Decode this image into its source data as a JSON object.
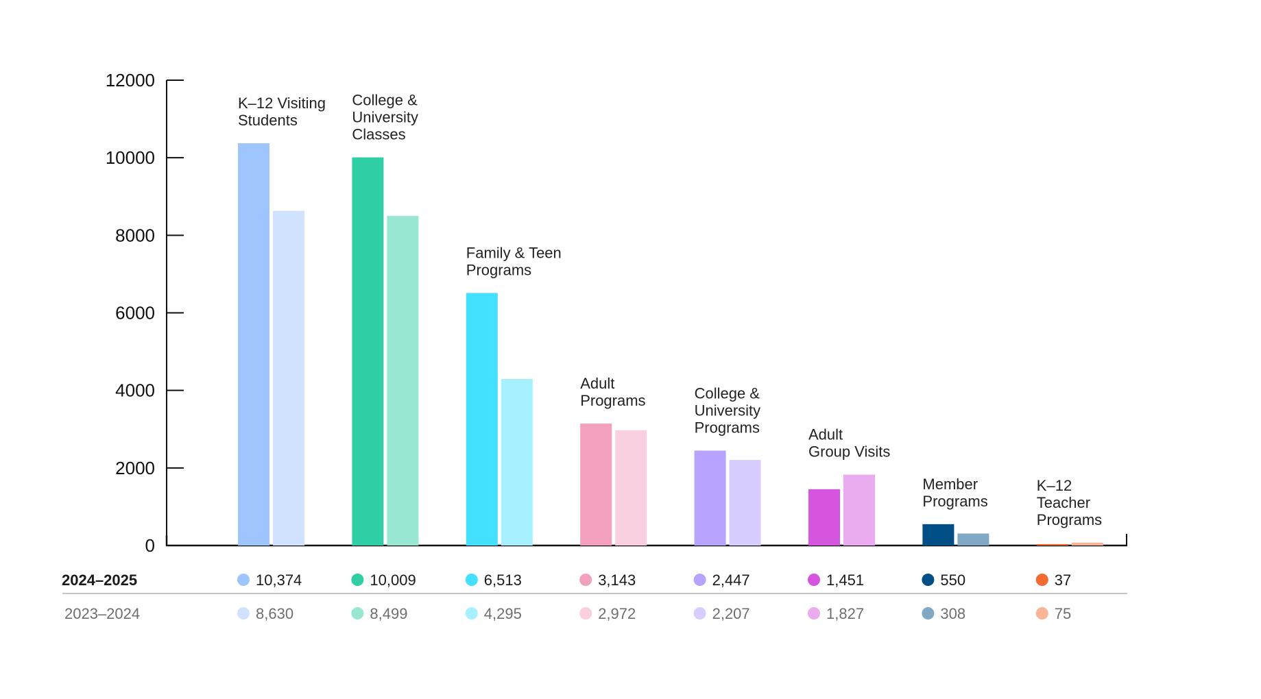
{
  "chart_data": {
    "type": "bar",
    "title": "",
    "xlabel": "",
    "ylabel": "",
    "ylim": [
      0,
      12000
    ],
    "yticks": [
      0,
      2000,
      4000,
      6000,
      8000,
      10000,
      12000
    ],
    "ytick_labels": [
      "0",
      "2000",
      "4000",
      "6000",
      "8000",
      "10000",
      "12000"
    ],
    "grid": false,
    "legend": "table below chart",
    "categories": [
      "K–12 Visiting Students",
      "College & University Classes",
      "Family & Teen Programs",
      "Adult Programs",
      "College & University Programs",
      "Adult Group Visits",
      "Member Programs",
      "K–12 Teacher Programs"
    ],
    "category_label_lines": [
      [
        "K–12 Visiting",
        "Students"
      ],
      [
        "College &",
        "University",
        "Classes"
      ],
      [
        "Family & Teen",
        "Programs"
      ],
      [
        "Adult",
        "Programs"
      ],
      [
        "College &",
        "University",
        "Programs"
      ],
      [
        "Adult",
        "Group Visits"
      ],
      [
        "Member",
        "Programs"
      ],
      [
        "K–12",
        "Teacher",
        "Programs"
      ]
    ],
    "series": [
      {
        "name": "2024–2025",
        "values": [
          10374,
          10009,
          6513,
          3143,
          2447,
          1451,
          550,
          37
        ],
        "value_labels": [
          "10,374",
          "10,009",
          "6,513",
          "3,143",
          "2,447",
          "1,451",
          "550",
          "37"
        ],
        "colors": [
          "#9EC5FE",
          "#2FCEA5",
          "#44E0FF",
          "#F39FBE",
          "#B8A4FE",
          "#D655DE",
          "#004F87",
          "#F26B32"
        ]
      },
      {
        "name": "2023–2024",
        "values": [
          8630,
          8499,
          4295,
          2972,
          2207,
          1827,
          308,
          75
        ],
        "value_labels": [
          "8,630",
          "8,499",
          "4,295",
          "2,972",
          "2,207",
          "1,827",
          "308",
          "75"
        ],
        "colors": [
          "#D0E2FE",
          "#98E7D2",
          "#A6F0FF",
          "#F9D0DF",
          "#D8CDFE",
          "#EAABEF",
          "#80A7C3",
          "#F8B598"
        ]
      }
    ]
  }
}
